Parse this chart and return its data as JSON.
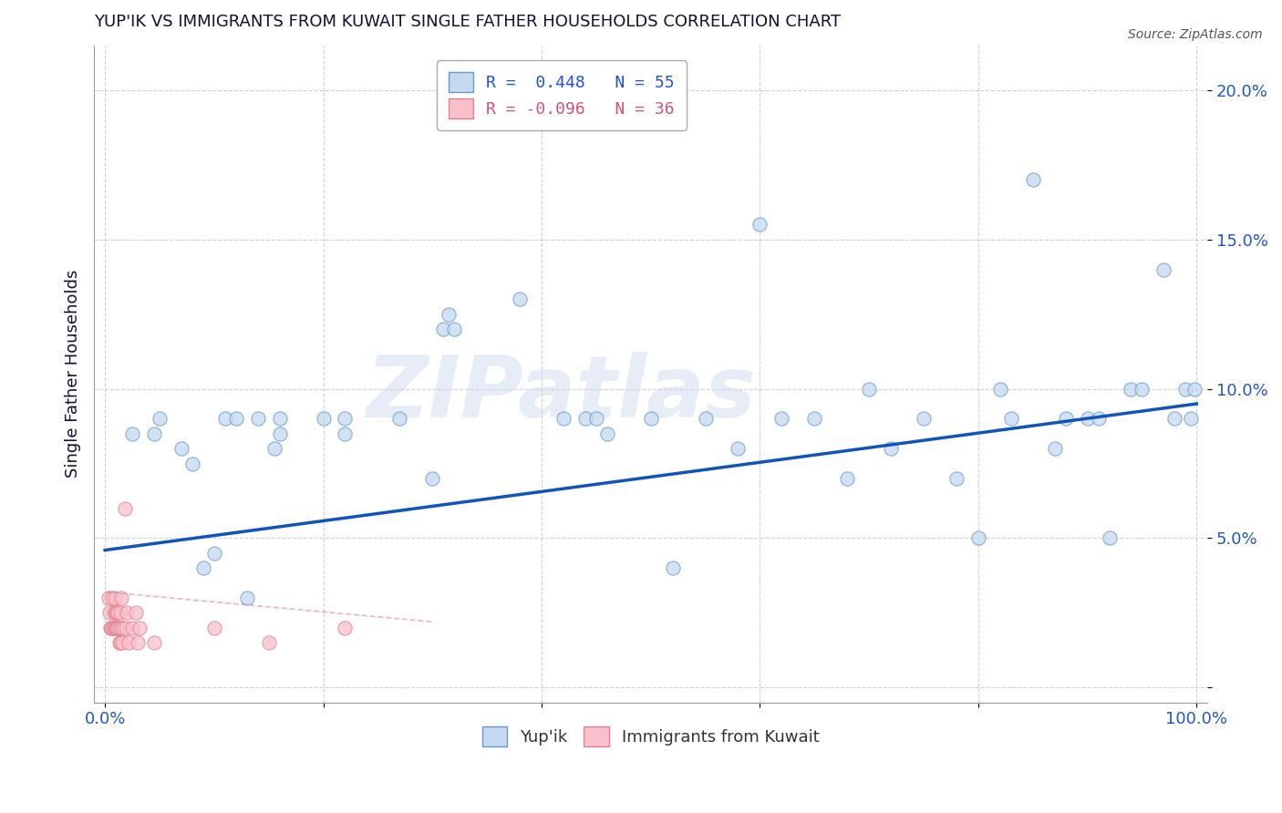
{
  "title": "YUP'IK VS IMMIGRANTS FROM KUWAIT SINGLE FATHER HOUSEHOLDS CORRELATION CHART",
  "source": "Source: ZipAtlas.com",
  "ylabel": "Single Father Households",
  "xlim": [
    -0.01,
    1.01
  ],
  "ylim": [
    -0.005,
    0.215
  ],
  "yticks": [
    0.0,
    0.05,
    0.1,
    0.15,
    0.2
  ],
  "ytick_labels": [
    "",
    "5.0%",
    "10.0%",
    "15.0%",
    "20.0%"
  ],
  "xticks": [
    0.0,
    0.2,
    0.4,
    0.6,
    0.8,
    1.0
  ],
  "xtick_labels": [
    "0.0%",
    "",
    "",
    "",
    "",
    "100.0%"
  ],
  "legend_r_entries": [
    {
      "label": "R =  0.448   N = 55",
      "color": "#aec6e8",
      "text_color": "#2255cc"
    },
    {
      "label": "R = -0.096   N = 36",
      "color": "#f4b8c8",
      "text_color": "#cc5577"
    }
  ],
  "blue_scatter_x": [
    0.025,
    0.045,
    0.05,
    0.07,
    0.08,
    0.09,
    0.1,
    0.11,
    0.12,
    0.13,
    0.14,
    0.155,
    0.16,
    0.16,
    0.2,
    0.22,
    0.22,
    0.27,
    0.3,
    0.31,
    0.315,
    0.32,
    0.38,
    0.42,
    0.44,
    0.45,
    0.46,
    0.5,
    0.52,
    0.55,
    0.58,
    0.6,
    0.62,
    0.65,
    0.68,
    0.7,
    0.72,
    0.75,
    0.78,
    0.8,
    0.82,
    0.83,
    0.85,
    0.87,
    0.88,
    0.9,
    0.91,
    0.92,
    0.94,
    0.95,
    0.97,
    0.98,
    0.99,
    0.995,
    0.998
  ],
  "blue_scatter_y": [
    0.085,
    0.085,
    0.09,
    0.08,
    0.075,
    0.04,
    0.045,
    0.09,
    0.09,
    0.03,
    0.09,
    0.08,
    0.085,
    0.09,
    0.09,
    0.085,
    0.09,
    0.09,
    0.07,
    0.12,
    0.125,
    0.12,
    0.13,
    0.09,
    0.09,
    0.09,
    0.085,
    0.09,
    0.04,
    0.09,
    0.08,
    0.155,
    0.09,
    0.09,
    0.07,
    0.1,
    0.08,
    0.09,
    0.07,
    0.05,
    0.1,
    0.09,
    0.17,
    0.08,
    0.09,
    0.09,
    0.09,
    0.05,
    0.1,
    0.1,
    0.14,
    0.09,
    0.1,
    0.09,
    0.1
  ],
  "pink_scatter_x": [
    0.003,
    0.004,
    0.005,
    0.006,
    0.007,
    0.007,
    0.008,
    0.008,
    0.009,
    0.009,
    0.01,
    0.01,
    0.011,
    0.011,
    0.012,
    0.012,
    0.013,
    0.013,
    0.014,
    0.014,
    0.015,
    0.015,
    0.016,
    0.017,
    0.018,
    0.019,
    0.02,
    0.022,
    0.025,
    0.028,
    0.03,
    0.032,
    0.045,
    0.1,
    0.15,
    0.22
  ],
  "pink_scatter_y": [
    0.03,
    0.025,
    0.02,
    0.02,
    0.03,
    0.02,
    0.025,
    0.02,
    0.02,
    0.03,
    0.02,
    0.025,
    0.02,
    0.025,
    0.02,
    0.025,
    0.015,
    0.02,
    0.015,
    0.025,
    0.02,
    0.03,
    0.015,
    0.02,
    0.06,
    0.02,
    0.025,
    0.015,
    0.02,
    0.025,
    0.015,
    0.02,
    0.015,
    0.02,
    0.015,
    0.02
  ],
  "blue_line_x": [
    0.0,
    1.0
  ],
  "blue_line_y": [
    0.046,
    0.095
  ],
  "pink_line_x": [
    0.0,
    0.3
  ],
  "pink_line_y": [
    0.032,
    0.022
  ],
  "scatter_size": 120,
  "blue_color": "#c5d9f0",
  "blue_edge_color": "#6699cc",
  "pink_color": "#f9c0cc",
  "pink_edge_color": "#e08090",
  "line_blue_color": "#1155bb",
  "line_pink_color": "#dd8899",
  "background_color": "#ffffff",
  "grid_color": "#cccccc",
  "title_color": "#111133",
  "axis_label_color": "#111133",
  "tick_color": "#2255cc",
  "watermark": "ZIPatlas"
}
